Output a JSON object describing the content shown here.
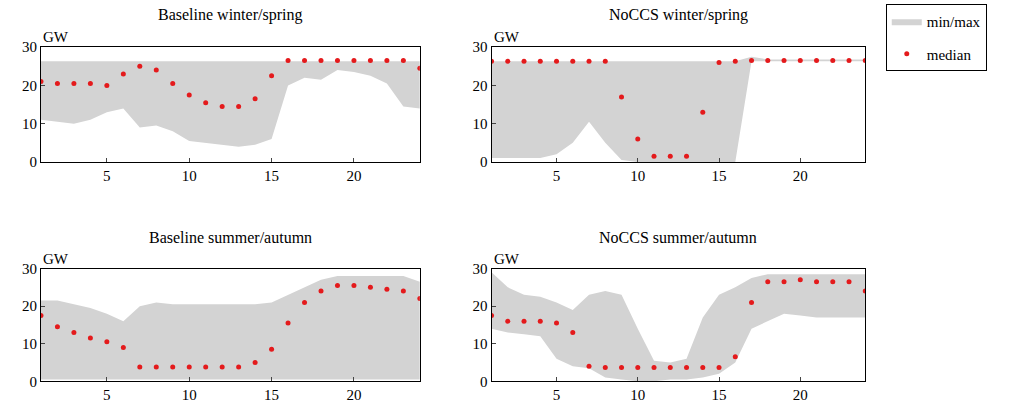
{
  "chart_data": [
    {
      "type": "band_scatter",
      "title": "Baseline winter/spring",
      "ylabel": "GW",
      "x": [
        1,
        2,
        3,
        4,
        5,
        6,
        7,
        8,
        9,
        10,
        11,
        12,
        13,
        14,
        15,
        16,
        17,
        18,
        19,
        20,
        21,
        22,
        23,
        24
      ],
      "xlim": [
        1,
        24
      ],
      "xticks": [
        5,
        10,
        15,
        20
      ],
      "ylim": [
        0,
        30
      ],
      "yticks": [
        0,
        10,
        20,
        30
      ],
      "legend": "right",
      "series": [
        {
          "name": "min/max",
          "type": "area",
          "color": "#d3d3d3",
          "lower": [
            11,
            10.5,
            10,
            11,
            13,
            14,
            9,
            9.5,
            8,
            5.5,
            5,
            4.5,
            4,
            4.5,
            6,
            20,
            22,
            21.5,
            24,
            23.5,
            22.5,
            20.5,
            14.5,
            14
          ],
          "upper": [
            26.3,
            26.3,
            26.3,
            26.3,
            26.3,
            26.3,
            26.3,
            26.3,
            26.3,
            26.3,
            26.3,
            26.3,
            26.3,
            26.3,
            26.3,
            26.3,
            26.3,
            26.3,
            26.3,
            26.3,
            26.3,
            26.3,
            26.3,
            26.3
          ]
        },
        {
          "name": "median",
          "type": "scatter",
          "color": "#e41a1c",
          "marker": "circle",
          "values": [
            21,
            20.5,
            20.5,
            20.5,
            20,
            23,
            25,
            24,
            20.5,
            17.5,
            15.5,
            14.5,
            14.5,
            16.5,
            22.5,
            26.5,
            26.5,
            26.5,
            26.5,
            26.5,
            26.5,
            26.5,
            26.5,
            24.5
          ]
        }
      ]
    },
    {
      "type": "band_scatter",
      "title": "NoCCS winter/spring",
      "ylabel": "GW",
      "x": [
        1,
        2,
        3,
        4,
        5,
        6,
        7,
        8,
        9,
        10,
        11,
        12,
        13,
        14,
        15,
        16,
        17,
        18,
        19,
        20,
        21,
        22,
        23,
        24
      ],
      "xlim": [
        1,
        24
      ],
      "xticks": [
        5,
        10,
        15,
        20
      ],
      "ylim": [
        0,
        30
      ],
      "yticks": [
        0,
        10,
        20,
        30
      ],
      "series": [
        {
          "name": "min/max",
          "type": "area",
          "color": "#d3d3d3",
          "lower": [
            1,
            1,
            1,
            1,
            2,
            5,
            10.5,
            5,
            0.5,
            0,
            0,
            0,
            0,
            0,
            0,
            0,
            26.3,
            26.3,
            26.3,
            26.3,
            26.3,
            26.3,
            26.3,
            26.3
          ],
          "upper": [
            26.3,
            26.3,
            26.3,
            26.3,
            26.3,
            26.3,
            26.3,
            26.3,
            26.3,
            26.3,
            26.3,
            26.3,
            26.3,
            26.3,
            26.3,
            26.3,
            27.5,
            26.8,
            26.8,
            26.8,
            26.8,
            26.8,
            26.8,
            26.8
          ]
        },
        {
          "name": "median",
          "type": "scatter",
          "color": "#e41a1c",
          "marker": "circle",
          "values": [
            26.3,
            26.3,
            26.3,
            26.3,
            26.3,
            26.3,
            26.3,
            26.3,
            17,
            6,
            1.5,
            1.5,
            1.5,
            13,
            26,
            26.3,
            26.5,
            26.5,
            26.5,
            26.5,
            26.5,
            26.5,
            26.5,
            26.5
          ]
        }
      ]
    },
    {
      "type": "band_scatter",
      "title": "Baseline summer/autumn",
      "ylabel": "GW",
      "x": [
        1,
        2,
        3,
        4,
        5,
        6,
        7,
        8,
        9,
        10,
        11,
        12,
        13,
        14,
        15,
        16,
        17,
        18,
        19,
        20,
        21,
        22,
        23,
        24
      ],
      "xlim": [
        1,
        24
      ],
      "xticks": [
        5,
        10,
        15,
        20
      ],
      "ylim": [
        0,
        30
      ],
      "yticks": [
        0,
        10,
        20,
        30
      ],
      "series": [
        {
          "name": "min/max",
          "type": "area",
          "color": "#d3d3d3",
          "lower": [
            0.5,
            0.5,
            0.5,
            0.5,
            0.5,
            0.5,
            0.5,
            0.5,
            0.5,
            0.5,
            0.5,
            0.5,
            0.5,
            0.5,
            0.5,
            0.5,
            0.5,
            0.5,
            0.5,
            0.5,
            0.5,
            0.5,
            0.5,
            0.5
          ],
          "upper": [
            21.5,
            21.5,
            20.5,
            19.5,
            18,
            16,
            20,
            21,
            20.5,
            20.5,
            20.5,
            20.5,
            20.5,
            20.5,
            21,
            23,
            25,
            27,
            28,
            28,
            28,
            28,
            28,
            26.5
          ]
        },
        {
          "name": "median",
          "type": "scatter",
          "color": "#e41a1c",
          "marker": "circle",
          "values": [
            17.5,
            14.5,
            13,
            11.5,
            10.5,
            9,
            3.8,
            3.8,
            3.8,
            3.8,
            3.8,
            3.8,
            3.8,
            5,
            8.5,
            15.5,
            21,
            24,
            25.5,
            25.5,
            25,
            24.5,
            24,
            22
          ]
        }
      ]
    },
    {
      "type": "band_scatter",
      "title": "NoCCS summer/autumn",
      "ylabel": "GW",
      "x": [
        1,
        2,
        3,
        4,
        5,
        6,
        7,
        8,
        9,
        10,
        11,
        12,
        13,
        14,
        15,
        16,
        17,
        18,
        19,
        20,
        21,
        22,
        23,
        24
      ],
      "xlim": [
        1,
        24
      ],
      "xticks": [
        5,
        10,
        15,
        20
      ],
      "ylim": [
        0,
        30
      ],
      "yticks": [
        0,
        10,
        20,
        30
      ],
      "series": [
        {
          "name": "min/max",
          "type": "area",
          "color": "#d3d3d3",
          "lower": [
            14,
            13,
            12.5,
            12,
            6,
            4,
            3.5,
            1,
            0.5,
            0,
            0,
            0.5,
            0.5,
            1,
            2,
            5,
            14,
            16,
            18,
            17.5,
            17,
            17,
            17,
            17
          ],
          "upper": [
            29,
            25,
            23,
            22.5,
            21,
            19,
            23,
            24,
            23,
            14,
            5.5,
            5,
            6,
            17,
            23,
            25,
            27.5,
            28.5,
            28.5,
            28.5,
            28.5,
            28.5,
            28.5,
            28.5
          ]
        },
        {
          "name": "median",
          "type": "scatter",
          "color": "#e41a1c",
          "marker": "circle",
          "values": [
            17.5,
            16,
            16,
            16,
            15.5,
            13,
            4,
            3.7,
            3.7,
            3.7,
            3.7,
            3.7,
            3.7,
            3.7,
            3.7,
            6.5,
            21,
            26.5,
            26.5,
            27,
            26.5,
            26.5,
            26.5,
            24
          ]
        }
      ]
    }
  ]
}
